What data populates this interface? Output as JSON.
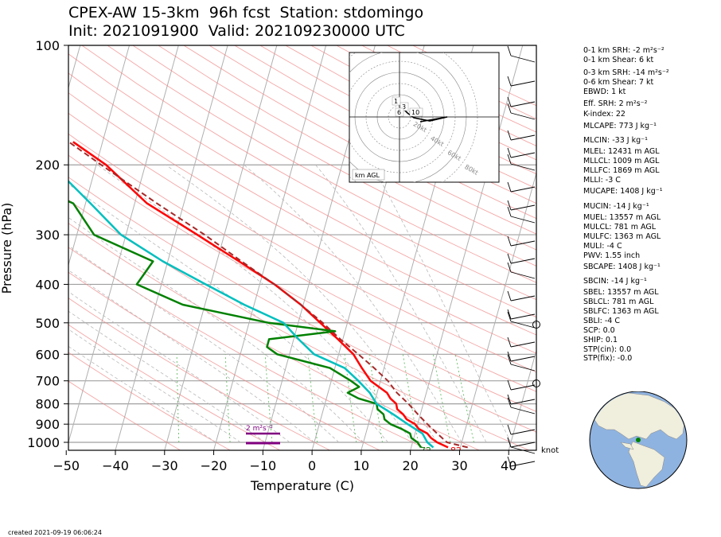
{
  "title": {
    "line1": "CPEX-AW 15-3km  96h fcst  Station: stdomingo",
    "line2": "Init: 2021091900  Valid: 202109230000 UTC"
  },
  "chart_data": {
    "type": "skew-t",
    "ylabel": "Pressure (hPa)",
    "xlabel": "Temperature (C)",
    "y_ticks": [
      100,
      200,
      300,
      400,
      500,
      600,
      700,
      800,
      900,
      1000
    ],
    "x_ticks": [
      -50,
      -40,
      -30,
      -20,
      -10,
      0,
      10,
      20,
      30,
      40
    ],
    "xlim": [
      -50,
      45
    ],
    "ylim": [
      1050,
      100
    ],
    "y_scale": "log",
    "series": [
      {
        "type": "temperature",
        "color": "#ff0000",
        "p": [
          1030,
          1000,
          975,
          950,
          925,
          900,
          875,
          850,
          825,
          800,
          775,
          750,
          700,
          650,
          600,
          550,
          500,
          450,
          400,
          350,
          300,
          250,
          200,
          175
        ],
        "t": [
          27.5,
          25.0,
          23.5,
          22.5,
          20.5,
          19.5,
          17.5,
          16.5,
          15.0,
          14.5,
          13.0,
          12.0,
          8.0,
          5.5,
          3.0,
          -1.0,
          -5.5,
          -10.5,
          -17.0,
          -25.5,
          -35.5,
          -47.5,
          -58.0,
          -66.0
        ]
      },
      {
        "type": "dewpoint",
        "color": "#008000",
        "p": [
          1030,
          1000,
          975,
          950,
          925,
          900,
          875,
          850,
          825,
          800,
          775,
          750,
          725,
          700,
          650,
          600,
          575,
          550,
          525,
          500,
          450,
          400,
          350,
          300,
          250,
          200,
          160,
          130,
          110,
          100
        ],
        "t": [
          22.0,
          21.0,
          19.5,
          19.0,
          17.0,
          14.5,
          13.0,
          12.5,
          11.0,
          10.5,
          6.5,
          4.0,
          6.0,
          4.0,
          -1.0,
          -12.5,
          -15.0,
          -15.0,
          -2.0,
          -16.0,
          -34.5,
          -45.0,
          -43.0,
          -56.5,
          -62.5,
          -83.0,
          -95.0,
          -107.0,
          -113.0,
          -116.0
        ]
      },
      {
        "type": "virtual-temperature-dewpoint",
        "color": "#00bfbf",
        "p": [
          1030,
          1000,
          950,
          900,
          850,
          800,
          750,
          700,
          650,
          600,
          550,
          500,
          450,
          400,
          350,
          300,
          250,
          200,
          160,
          130,
          110,
          100
        ],
        "t": [
          24.5,
          23.0,
          21.5,
          18.0,
          14.5,
          10.5,
          8.5,
          5.5,
          2.0,
          -5.0,
          -9.0,
          -13.0,
          -22.0,
          -31.0,
          -41.0,
          -51.0,
          -59.0,
          -69.0,
          -79.0,
          -89.0,
          -96.0,
          -99.0
        ]
      },
      {
        "type": "parcel",
        "color": "#a52a2a",
        "dashed": true,
        "p": [
          1030,
          1000,
          950,
          900,
          850,
          800,
          750,
          700,
          650,
          600,
          550,
          500,
          450,
          400,
          350,
          300,
          250,
          200,
          150,
          125,
          100
        ],
        "t": [
          31.5,
          27.0,
          24.5,
          22.0,
          19.5,
          17.0,
          14.0,
          11.5,
          8.0,
          4.0,
          -0.5,
          -5.0,
          -10.5,
          -17.0,
          -25.0,
          -34.0,
          -45.5,
          -59.0,
          -76.0,
          -89.0,
          -106.0
        ]
      }
    ],
    "surface_labels": {
      "dewpoint": "72",
      "temperature": "82"
    },
    "srh_bar_label": "2 m$^2$s$^{-2}$",
    "hodograph": {
      "rings_label": [
        "20kt",
        "40kt",
        "60kt",
        "80kt"
      ],
      "level_labels": [
        "1",
        "3",
        "6",
        "10"
      ],
      "box_label": "km AGL"
    },
    "wind_unit_label": "knot"
  },
  "indices": [
    "0-1 km SRH: -2 m²s⁻²",
    "0-1 km Shear: 6 kt",
    "0-3 km SRH: -14 m²s⁻²",
    "0-6 km Shear: 7 kt",
    "EBWD: 1 kt",
    "Eff. SRH: 2 m²s⁻²",
    "K-index: 22",
    "MLCAPE: 773 J kg⁻¹",
    "MLCIN: -33 J kg⁻¹",
    "MLEL: 12431 m AGL",
    "MLLCL: 1009 m AGL",
    "MLLFC: 1869 m AGL",
    "MLLI: -3 C",
    "MUCAPE: 1408 J kg⁻¹",
    "MUCIN: -14 J kg⁻¹",
    "MUEL: 13557 m AGL",
    "MULCL: 781 m AGL",
    "MULFC: 1363 m AGL",
    "MULI: -4 C",
    "PWV: 1.55 inch",
    "SBCAPE: 1408 J kg⁻¹",
    "SBCIN: -14 J kg⁻¹",
    "SBEL: 13557 m AGL",
    "SBLCL: 781 m AGL",
    "SBLFC: 1363 m AGL",
    "SBLI: -4 C",
    "SCP: 0.0",
    "SHIP: 0.1",
    "STP(cin): 0.0",
    "STP(fix): -0.0"
  ],
  "created": "created 2021-09-19 06:06:24",
  "colors": {
    "temperature": "#ff0000",
    "dewpoint": "#008000",
    "vt": "#00bfbf",
    "parcel": "#a52a2a",
    "isotherm": "#b0b0b0",
    "dry_adiabat": "#f08080",
    "moist_adiabat": "#b8b8b8",
    "mixing_ratio": "#66bb66",
    "srh_bar": "#800080",
    "ocean": "#8fb3e0",
    "land": "#f0eedc"
  }
}
